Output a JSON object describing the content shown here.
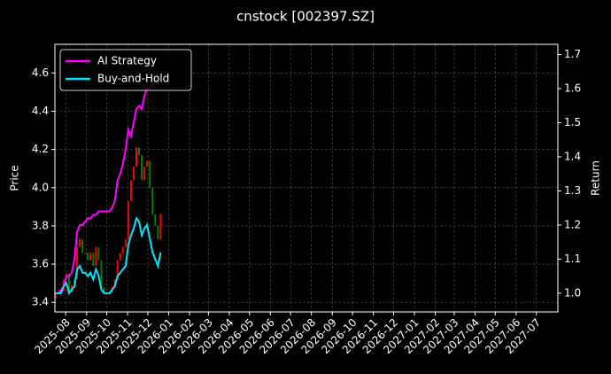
{
  "chart_data": {
    "type": "candlestick",
    "title": "cnstock [002397.SZ]",
    "ylabel": "Price",
    "y2label": "Return",
    "x": [
      20286,
      20290,
      20294,
      20298,
      20302,
      20306,
      20310,
      20314,
      20318,
      20322,
      20326,
      20330,
      20334,
      20338,
      20342,
      20346,
      20350,
      20354,
      20358,
      20362,
      20366,
      20370,
      20374,
      20378,
      20382,
      20386,
      20390,
      20394,
      20398,
      20402,
      20406,
      20410,
      20414,
      20418,
      20422,
      20426,
      20430,
      20434,
      20438,
      20442
    ],
    "open": [
      3.42,
      3.45,
      3.45,
      3.46,
      3.52,
      3.55,
      3.45,
      3.49,
      3.52,
      3.69,
      3.73,
      3.66,
      3.66,
      3.62,
      3.66,
      3.59,
      3.69,
      3.62,
      3.48,
      3.45,
      3.45,
      3.45,
      3.48,
      3.52,
      3.62,
      3.66,
      3.69,
      3.73,
      3.93,
      4.04,
      4.11,
      4.21,
      4.17,
      4.04,
      4.11,
      4.14,
      4.0,
      3.86,
      3.8,
      3.73
    ],
    "close": [
      3.45,
      3.45,
      3.46,
      3.52,
      3.55,
      3.45,
      3.49,
      3.52,
      3.69,
      3.73,
      3.66,
      3.66,
      3.62,
      3.66,
      3.59,
      3.69,
      3.62,
      3.48,
      3.45,
      3.45,
      3.45,
      3.48,
      3.52,
      3.62,
      3.66,
      3.69,
      3.73,
      3.93,
      4.04,
      4.11,
      4.21,
      4.17,
      4.04,
      4.11,
      4.14,
      4.0,
      3.86,
      3.8,
      3.73,
      3.86
    ],
    "up_color": "#ff0000",
    "down_color": "#008000",
    "series": [
      {
        "name": "AI Strategy",
        "color": "#ff00ff",
        "axis": "y2",
        "values": [
          1.0,
          1.0,
          1.01,
          1.02,
          1.05,
          1.05,
          1.06,
          1.1,
          1.18,
          1.2,
          1.2,
          1.21,
          1.22,
          1.22,
          1.23,
          1.23,
          1.24,
          1.24,
          1.24,
          1.24,
          1.24,
          1.25,
          1.27,
          1.33,
          1.35,
          1.38,
          1.42,
          1.48,
          1.46,
          1.5,
          1.54,
          1.55,
          1.54,
          1.58,
          1.6,
          1.6,
          1.61,
          1.62,
          1.62,
          1.62
        ]
      },
      {
        "name": "Buy-and-Hold",
        "color": "#00e5ff",
        "axis": "y2",
        "values": [
          1.0,
          1.0,
          1.0,
          1.02,
          1.03,
          1.0,
          1.01,
          1.02,
          1.07,
          1.08,
          1.06,
          1.06,
          1.05,
          1.06,
          1.04,
          1.07,
          1.05,
          1.01,
          1.0,
          1.0,
          1.0,
          1.01,
          1.02,
          1.05,
          1.06,
          1.07,
          1.08,
          1.14,
          1.17,
          1.19,
          1.22,
          1.21,
          1.17,
          1.19,
          1.2,
          1.16,
          1.12,
          1.1,
          1.08,
          1.12
        ]
      }
    ],
    "xlim": [
      20285,
      21032
    ],
    "xticks": [
      {
        "value": 20301,
        "label": "2025-08"
      },
      {
        "value": 20332,
        "label": "2025-09"
      },
      {
        "value": 20362,
        "label": "2025-10"
      },
      {
        "value": 20393,
        "label": "2025-11"
      },
      {
        "value": 20423,
        "label": "2025-12"
      },
      {
        "value": 20454,
        "label": "2026-01"
      },
      {
        "value": 20485,
        "label": "2026-02"
      },
      {
        "value": 20513,
        "label": "2026-03"
      },
      {
        "value": 20544,
        "label": "2026-04"
      },
      {
        "value": 20574,
        "label": "2026-05"
      },
      {
        "value": 20605,
        "label": "2026-06"
      },
      {
        "value": 20635,
        "label": "2026-07"
      },
      {
        "value": 20666,
        "label": "2026-08"
      },
      {
        "value": 20697,
        "label": "2026-09"
      },
      {
        "value": 20727,
        "label": "2026-10"
      },
      {
        "value": 20758,
        "label": "2026-11"
      },
      {
        "value": 20788,
        "label": "2026-12"
      },
      {
        "value": 20819,
        "label": "2027-01"
      },
      {
        "value": 20850,
        "label": "2027-02"
      },
      {
        "value": 20878,
        "label": "2027-03"
      },
      {
        "value": 20909,
        "label": "2027-04"
      },
      {
        "value": 20939,
        "label": "2027-05"
      },
      {
        "value": 20970,
        "label": "2027-06"
      },
      {
        "value": 21000,
        "label": "2027-07"
      }
    ],
    "ylim": [
      3.35,
      4.75
    ],
    "yticks": [
      3.4,
      3.6,
      3.8,
      {
        "value": 4,
        "label": "4.0"
      },
      4.2,
      4.4,
      4.6
    ],
    "y2lim": [
      0.945,
      1.73
    ],
    "y2ticks": [
      {
        "value": 1,
        "label": "1.0"
      },
      1.1,
      1.2,
      1.3,
      1.4,
      1.5,
      1.6,
      1.7
    ],
    "grid": true,
    "legend": "upper left"
  }
}
